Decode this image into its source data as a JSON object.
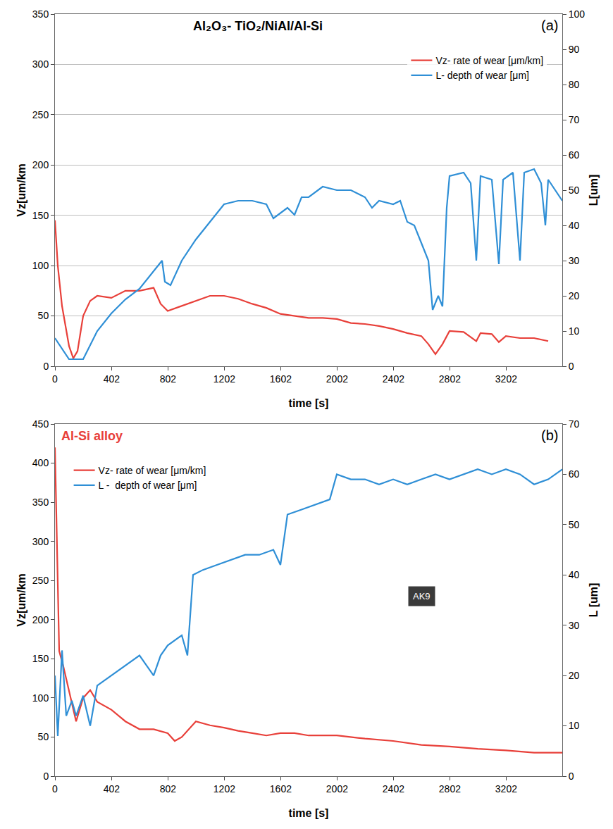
{
  "chart_data": [
    {
      "type": "line",
      "title": "Al₂O₃- TiO₂/NiAl/Al-Si",
      "panel_label": "(a)",
      "x_label": "time [s]",
      "y_label": "Vz[um/km",
      "y2_label": "L[um]",
      "xlim": [
        0,
        3600
      ],
      "xticks": [
        0,
        402,
        802,
        1202,
        1602,
        2002,
        2402,
        2802,
        3202
      ],
      "ylim": [
        0,
        350
      ],
      "yticks": [
        0,
        50,
        100,
        150,
        200,
        250,
        300,
        350
      ],
      "y2lim": [
        0,
        100
      ],
      "y2ticks": [
        0,
        10,
        20,
        30,
        40,
        50,
        60,
        70,
        80,
        90,
        100
      ],
      "grid": true,
      "legend": "top right",
      "series": [
        {
          "name": "Vz- rate of wear [μm/km]",
          "color": "#e8403a",
          "axis": "y",
          "x": [
            0,
            20,
            50,
            100,
            130,
            160,
            200,
            250,
            300,
            400,
            500,
            600,
            700,
            750,
            800,
            900,
            1000,
            1100,
            1200,
            1300,
            1400,
            1500,
            1600,
            1700,
            1800,
            1900,
            2000,
            2100,
            2200,
            2300,
            2400,
            2500,
            2600,
            2650,
            2700,
            2750,
            2800,
            2900,
            2990,
            3020,
            3100,
            3150,
            3200,
            3300,
            3400,
            3500
          ],
          "values": [
            145,
            100,
            60,
            20,
            8,
            15,
            50,
            65,
            70,
            68,
            75,
            75,
            78,
            62,
            55,
            60,
            65,
            70,
            70,
            67,
            62,
            58,
            52,
            50,
            48,
            48,
            47,
            43,
            42,
            40,
            37,
            33,
            30,
            22,
            12,
            22,
            35,
            34,
            25,
            33,
            32,
            24,
            30,
            28,
            28,
            25
          ]
        },
        {
          "name": "L- depth of wear [μm]",
          "color": "#2f8fd6",
          "axis": "y2",
          "x": [
            0,
            100,
            200,
            300,
            400,
            500,
            600,
            700,
            760,
            780,
            820,
            900,
            1000,
            1100,
            1200,
            1300,
            1400,
            1500,
            1550,
            1650,
            1700,
            1750,
            1800,
            1900,
            2000,
            2100,
            2200,
            2250,
            2300,
            2400,
            2450,
            2500,
            2550,
            2600,
            2650,
            2680,
            2720,
            2750,
            2780,
            2800,
            2900,
            2950,
            2990,
            3020,
            3100,
            3150,
            3180,
            3250,
            3300,
            3330,
            3400,
            3450,
            3480,
            3500,
            3550,
            3600
          ],
          "values": [
            8,
            2,
            2,
            10,
            15,
            19,
            22,
            27,
            30,
            24,
            23,
            30,
            36,
            41,
            46,
            47,
            47,
            46,
            42,
            45,
            43,
            48,
            48,
            51,
            50,
            50,
            48,
            45,
            47,
            46,
            47,
            41,
            40,
            35,
            30,
            16,
            20,
            17,
            45,
            54,
            55,
            52,
            30,
            54,
            53,
            29,
            53,
            55,
            30,
            55,
            56,
            52,
            40,
            53,
            50,
            47
          ]
        }
      ]
    },
    {
      "type": "line",
      "title": "Al-Si alloy",
      "panel_label": "(b)",
      "x_label": "time [s]",
      "y_label": "Vz[um/km",
      "y2_label": "L [um]",
      "xlim": [
        0,
        3600
      ],
      "xticks": [
        0,
        402,
        802,
        1202,
        1602,
        2002,
        2402,
        2802,
        3202
      ],
      "ylim": [
        0,
        450
      ],
      "yticks": [
        0,
        50,
        100,
        150,
        200,
        250,
        300,
        350,
        400,
        450
      ],
      "y2lim": [
        0,
        70
      ],
      "y2ticks": [
        0,
        10,
        20,
        30,
        40,
        50,
        60,
        70
      ],
      "grid": false,
      "legend": "top left",
      "annotations": [
        {
          "text": "AK9",
          "x": 2600,
          "y": 230
        }
      ],
      "series": [
        {
          "name": "Vz- rate of wear [μm/km]",
          "color": "#e8403a",
          "axis": "y",
          "x": [
            0,
            15,
            30,
            60,
            100,
            150,
            200,
            250,
            300,
            400,
            500,
            600,
            700,
            800,
            850,
            900,
            1000,
            1100,
            1200,
            1300,
            1400,
            1500,
            1600,
            1700,
            1800,
            1900,
            2000,
            2200,
            2400,
            2600,
            2800,
            3000,
            3200,
            3400,
            3600
          ],
          "values": [
            420,
            300,
            160,
            140,
            110,
            70,
            100,
            110,
            95,
            85,
            70,
            60,
            60,
            55,
            45,
            50,
            70,
            65,
            62,
            58,
            55,
            52,
            55,
            55,
            52,
            52,
            52,
            48,
            45,
            40,
            38,
            35,
            33,
            30,
            30
          ]
        },
        {
          "name": "L -  depth of wear [μm]",
          "color": "#2f8fd6",
          "axis": "y2",
          "x": [
            0,
            20,
            50,
            80,
            120,
            150,
            200,
            250,
            300,
            400,
            500,
            600,
            650,
            700,
            750,
            800,
            900,
            940,
            980,
            1050,
            1150,
            1250,
            1350,
            1450,
            1550,
            1600,
            1650,
            1750,
            1850,
            1950,
            2000,
            2100,
            2200,
            2300,
            2400,
            2500,
            2600,
            2700,
            2800,
            2900,
            3000,
            3100,
            3200,
            3300,
            3400,
            3500,
            3600
          ],
          "values": [
            20,
            8,
            25,
            12,
            15,
            12,
            16,
            10,
            18,
            20,
            22,
            24,
            22,
            20,
            24,
            26,
            28,
            24,
            40,
            41,
            42,
            43,
            44,
            44,
            45,
            42,
            52,
            53,
            54,
            55,
            60,
            59,
            59,
            58,
            59,
            58,
            59,
            60,
            59,
            60,
            61,
            60,
            61,
            60,
            58,
            59,
            61
          ]
        }
      ]
    }
  ]
}
